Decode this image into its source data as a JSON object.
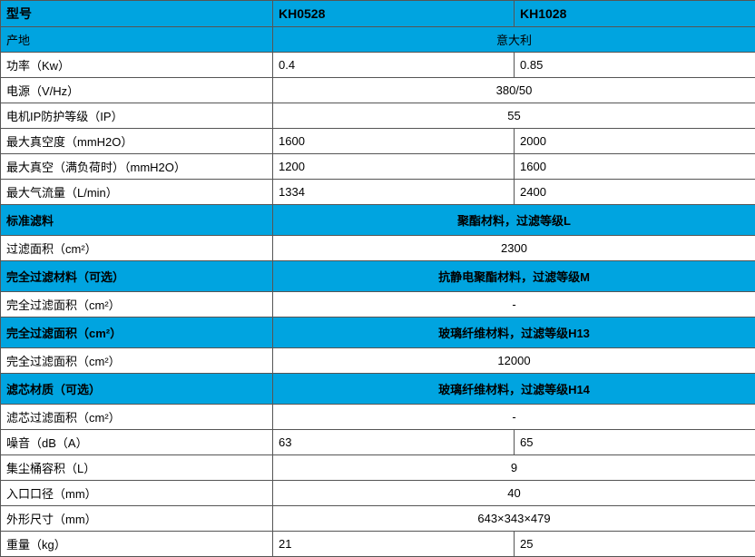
{
  "colors": {
    "header_bg": "#00a4e0",
    "border": "#555555",
    "text": "#000000",
    "bg": "#ffffff"
  },
  "header": {
    "label": "型号",
    "c1": "KH0528",
    "c2": "KH1028"
  },
  "rows": [
    {
      "label": "产地",
      "span": "意大利",
      "cls": "blue"
    },
    {
      "label": "功率（Kw）",
      "c1": "0.4",
      "c2": "0.85"
    },
    {
      "label": "电源（V/Hz）",
      "span": "380/50"
    },
    {
      "label": "电机IP防护等级（IP）",
      "span": "55"
    },
    {
      "label": "最大真空度（mmH2O）",
      "c1": "1600",
      "c2": "2000"
    },
    {
      "label": "最大真空（满负荷时）（mmH2O）",
      "c1": "1200",
      "c2": "1600"
    },
    {
      "label": "最大气流量（L/min）",
      "c1": "1334",
      "c2": "2400"
    },
    {
      "label": "标准滤料",
      "span": "聚酯材料，过滤等级L",
      "cls": "blue-tall",
      "bold": true
    },
    {
      "label": "过滤面积（cm²）",
      "span": "2300"
    },
    {
      "label": "完全过滤材料（可选）",
      "span": "抗静电聚酯材料，过滤等级M",
      "cls": "blue-tall",
      "bold": true
    },
    {
      "label": "完全过滤面积（cm²）",
      "span": "-"
    },
    {
      "label": "完全过滤面积（cm²）",
      "span": "玻璃纤维材料，过滤等级H13",
      "cls": "blue-tall",
      "bold": true
    },
    {
      "label": "完全过滤面积（cm²）",
      "span": "12000"
    },
    {
      "label": "滤芯材质（可选）",
      "span": "玻璃纤维材料，过滤等级H14",
      "cls": "blue-tall",
      "bold": true
    },
    {
      "label": "滤芯过滤面积（cm²）",
      "span": "-"
    },
    {
      "label": "噪音（dB（A）",
      "c1": "63",
      "c2": "65"
    },
    {
      "label": "集尘桶容积（L）",
      "span": "9"
    },
    {
      "label": "入口口径（mm）",
      "span": "40"
    },
    {
      "label": "外形尺寸（mm）",
      "span": "643×343×479"
    },
    {
      "label": "重量（kg）",
      "c1": "21",
      "c2": "25"
    }
  ]
}
